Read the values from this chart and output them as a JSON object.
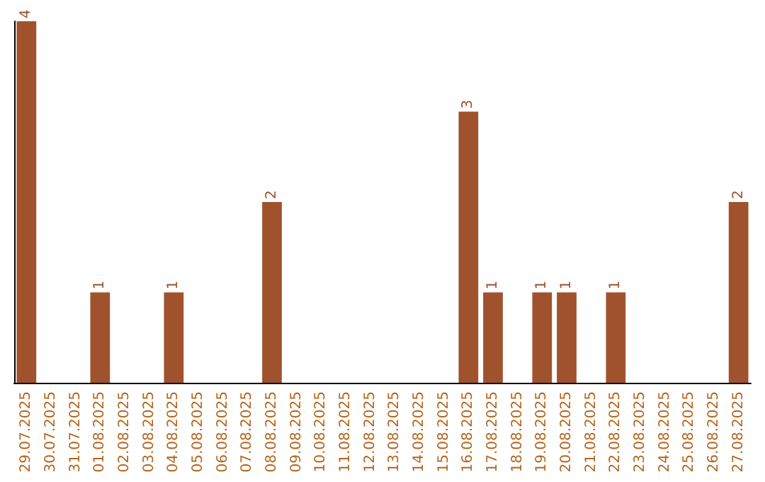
{
  "chart_data": {
    "type": "bar",
    "categories": [
      "29.07.2025",
      "30.07.2025",
      "31.07.2025",
      "01.08.2025",
      "02.08.2025",
      "03.08.2025",
      "04.08.2025",
      "05.08.2025",
      "06.08.2025",
      "07.08.2025",
      "08.08.2025",
      "09.08.2025",
      "10.08.2025",
      "11.08.2025",
      "12.08.2025",
      "13.08.2025",
      "14.08.2025",
      "15.08.2025",
      "16.08.2025",
      "17.08.2025",
      "18.08.2025",
      "19.08.2025",
      "20.08.2025",
      "21.08.2025",
      "22.08.2025",
      "23.08.2025",
      "24.08.2025",
      "25.08.2025",
      "26.08.2025",
      "27.08.2025"
    ],
    "values": [
      4,
      0,
      0,
      1,
      0,
      0,
      1,
      0,
      0,
      0,
      2,
      0,
      0,
      0,
      0,
      0,
      0,
      0,
      3,
      1,
      0,
      1,
      1,
      0,
      1,
      0,
      0,
      0,
      0,
      2
    ],
    "value_labels": [
      "4",
      null,
      null,
      "1",
      null,
      null,
      "1",
      null,
      null,
      null,
      "2",
      null,
      null,
      null,
      null,
      null,
      null,
      null,
      "3",
      "1",
      null,
      "1",
      "1",
      null,
      "1",
      null,
      null,
      null,
      null,
      "2"
    ],
    "color": "#a0522d",
    "grid": false,
    "tick_labels": "x"
  }
}
